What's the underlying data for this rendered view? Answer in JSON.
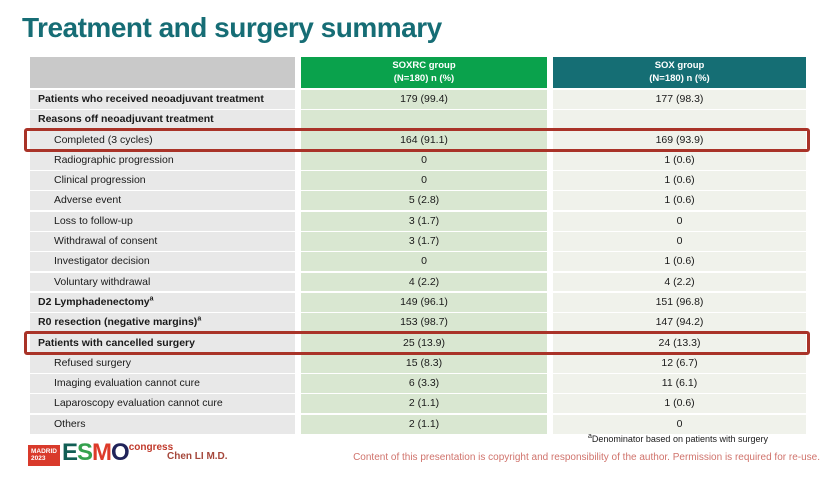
{
  "slide": {
    "title": "Treatment and surgery summary",
    "presenter": "Chen LI M.D.",
    "footnote_sup": "a",
    "footnote_text": "Denominator based on patients with surgery",
    "copyright": "Content of this presentation is copyright and responsibility of the author. Permission is required for re-use."
  },
  "logo": {
    "madrid_line1": "MADRID",
    "madrid_line2": "2023",
    "letters": [
      {
        "char": "E",
        "color": "#115e54"
      },
      {
        "char": "S",
        "color": "#35a14e"
      },
      {
        "char": "M",
        "color": "#dd3b2a"
      },
      {
        "char": "O",
        "color": "#20235a"
      }
    ],
    "congress": "congress"
  },
  "colors": {
    "title": "#166d75",
    "header_soxrc": "#0aa24c",
    "header_sox": "#156e74",
    "label_cell": "#e8e8e8",
    "soxrc_cell": "#d9e7d1",
    "sox_cell": "#f0f2eb",
    "highlight_border": "#a93328",
    "copyright_text": "#d0736c"
  },
  "table": {
    "columns": [
      {
        "line1": "SOXRC group",
        "line2": "(N=180)  n (%)",
        "color": "#0aa24c"
      },
      {
        "line1": "SOX group",
        "line2": "(N=180)  n (%)",
        "color": "#156e74"
      }
    ],
    "rows": [
      {
        "label": "Patients who received neoadjuvant treatment",
        "sup": "",
        "soxrc": "179 (99.4)",
        "sox": "177 (98.3)",
        "bold": true,
        "indent": false,
        "highlight": false
      },
      {
        "label": "Reasons off neoadjuvant treatment",
        "sup": "",
        "soxrc": "",
        "sox": "",
        "bold": true,
        "indent": false,
        "highlight": false
      },
      {
        "label": "Completed (3 cycles)",
        "sup": "",
        "soxrc": "164 (91.1)",
        "sox": "169 (93.9)",
        "bold": false,
        "indent": true,
        "highlight": true
      },
      {
        "label": "Radiographic progression",
        "sup": "",
        "soxrc": "0",
        "sox": "1 (0.6)",
        "bold": false,
        "indent": true,
        "highlight": false
      },
      {
        "label": "Clinical progression",
        "sup": "",
        "soxrc": "0",
        "sox": "1 (0.6)",
        "bold": false,
        "indent": true,
        "highlight": false
      },
      {
        "label": "Adverse event",
        "sup": "",
        "soxrc": "5 (2.8)",
        "sox": "1 (0.6)",
        "bold": false,
        "indent": true,
        "highlight": false
      },
      {
        "label": "Loss to follow-up",
        "sup": "",
        "soxrc": "3 (1.7)",
        "sox": "0",
        "bold": false,
        "indent": true,
        "highlight": false
      },
      {
        "label": "Withdrawal of consent",
        "sup": "",
        "soxrc": "3 (1.7)",
        "sox": "0",
        "bold": false,
        "indent": true,
        "highlight": false
      },
      {
        "label": "Investigator decision",
        "sup": "",
        "soxrc": "0",
        "sox": "1 (0.6)",
        "bold": false,
        "indent": true,
        "highlight": false
      },
      {
        "label": "Voluntary withdrawal",
        "sup": "",
        "soxrc": "4 (2.2)",
        "sox": "4 (2.2)",
        "bold": false,
        "indent": true,
        "highlight": false
      },
      {
        "label": "D2 Lymphadenectomy",
        "sup": "a",
        "soxrc": "149 (96.1)",
        "sox": "151 (96.8)",
        "bold": true,
        "indent": false,
        "highlight": false
      },
      {
        "label": "R0 resection (negative margins)",
        "sup": "a",
        "soxrc": "153 (98.7)",
        "sox": "147 (94.2)",
        "bold": true,
        "indent": false,
        "highlight": false
      },
      {
        "label": "Patients with cancelled surgery",
        "sup": "",
        "soxrc": "25 (13.9)",
        "sox": "24 (13.3)",
        "bold": true,
        "indent": false,
        "highlight": true
      },
      {
        "label": "Refused surgery",
        "sup": "",
        "soxrc": "15 (8.3)",
        "sox": "12 (6.7)",
        "bold": false,
        "indent": true,
        "highlight": false
      },
      {
        "label": "Imaging evaluation cannot cure",
        "sup": "",
        "soxrc": "6 (3.3)",
        "sox": "11 (6.1)",
        "bold": false,
        "indent": true,
        "highlight": false
      },
      {
        "label": "Laparoscopy evaluation cannot cure",
        "sup": "",
        "soxrc": "2 (1.1)",
        "sox": "1 (0.6)",
        "bold": false,
        "indent": true,
        "highlight": false
      },
      {
        "label": "Others",
        "sup": "",
        "soxrc": "2 (1.1)",
        "sox": "0",
        "bold": false,
        "indent": true,
        "highlight": false
      }
    ]
  }
}
